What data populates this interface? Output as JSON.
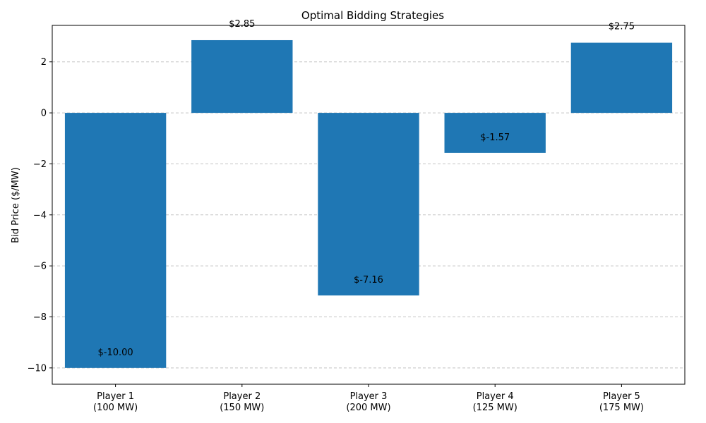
{
  "chart_data": {
    "type": "bar",
    "title": "Optimal Bidding Strategies",
    "xlabel": "",
    "ylabel": "Bid Price ($/MW)",
    "categories": [
      [
        "Player 1",
        "(100 MW)"
      ],
      [
        "Player 2",
        "(150 MW)"
      ],
      [
        "Player 3",
        "(200 MW)"
      ],
      [
        "Player 4",
        "(125 MW)"
      ],
      [
        "Player 5",
        "(175 MW)"
      ]
    ],
    "values": [
      -10.0,
      2.85,
      -7.16,
      -1.57,
      2.75
    ],
    "value_labels": [
      "$-10.00",
      "$2.85",
      "$-7.16",
      "$-1.57",
      "$2.75"
    ],
    "ylim": [
      -10.64,
      3.43
    ],
    "yticks": [
      -10,
      -8,
      -6,
      -4,
      -2,
      0,
      2
    ],
    "ytick_labels": [
      "−10",
      "−8",
      "−6",
      "−4",
      "−2",
      "0",
      "2"
    ],
    "grid": "y-dashed",
    "bar_color": "#1f77b4",
    "grid_color": "#c4c4c4"
  }
}
